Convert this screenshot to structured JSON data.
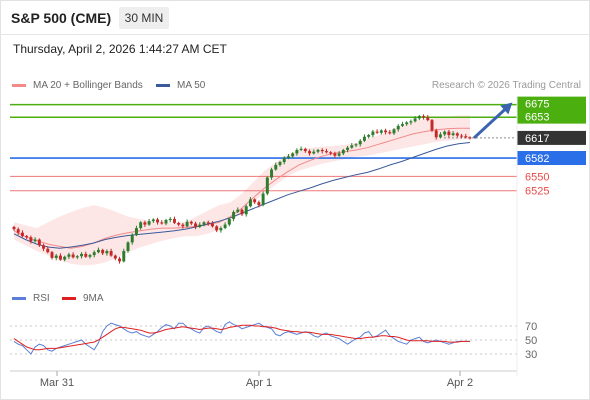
{
  "header": {
    "symbol": "S&P 500 (CME)",
    "interval": "30 MIN"
  },
  "timestamp": "Thursday, April 2, 2026 1:44:27 AM CET",
  "legend": {
    "ma20": {
      "label": "MA 20 + Bollinger Bands",
      "color": "#f28a8a"
    },
    "ma50": {
      "label": "MA 50",
      "color": "#3b5a9a"
    },
    "credit": "Research © 2026 Trading Central"
  },
  "rsi_legend": {
    "rsi": {
      "label": "RSI",
      "color": "#5a7fd6"
    },
    "ma9": {
      "label": "9MA",
      "color": "#e02020"
    }
  },
  "chart_data": [
    {
      "type": "candlestick",
      "ylim": [
        6380,
        6690
      ],
      "x_tick_labels": [
        "Mar 31",
        "Apr 1",
        "Apr 2"
      ],
      "levels": [
        {
          "label": "6675",
          "value": 6675,
          "color": "#4caf10",
          "kind": "resistance"
        },
        {
          "label": "6653",
          "value": 6653,
          "color": "#4caf10",
          "kind": "resistance"
        },
        {
          "label": "6617",
          "value": 6617,
          "color": "#333333",
          "kind": "last"
        },
        {
          "label": "6582",
          "value": 6582,
          "color": "#2a6ee8",
          "kind": "pivot"
        },
        {
          "label": "6550",
          "value": 6550,
          "color": "#ea4a4a",
          "kind": "support"
        },
        {
          "label": "6525",
          "value": 6525,
          "color": "#ea4a4a",
          "kind": "support"
        }
      ],
      "colors": {
        "up": "#2e7d2e",
        "down": "#c62828",
        "band": "#fde3e3"
      },
      "close": [
        6458,
        6452,
        6446,
        6444,
        6437,
        6440,
        6430,
        6424,
        6418,
        6408,
        6412,
        6405,
        6410,
        6414,
        6409,
        6411,
        6415,
        6410,
        6413,
        6418,
        6422,
        6416,
        6420,
        6412,
        6407,
        6402,
        6420,
        6435,
        6448,
        6460,
        6470,
        6466,
        6472,
        6475,
        6470,
        6468,
        6474,
        6476,
        6469,
        6466,
        6463,
        6471,
        6468,
        6462,
        6466,
        6470,
        6468,
        6463,
        6456,
        6460,
        6466,
        6476,
        6488,
        6492,
        6484,
        6498,
        6510,
        6505,
        6500,
        6520,
        6548,
        6562,
        6570,
        6575,
        6582,
        6585,
        6590,
        6596,
        6598,
        6594,
        6590,
        6593,
        6596,
        6594,
        6592,
        6590,
        6586,
        6590,
        6596,
        6600,
        6604,
        6606,
        6612,
        6619,
        6622,
        6628,
        6626,
        6630,
        6627,
        6625,
        6632,
        6638,
        6641,
        6644,
        6646,
        6651,
        6655,
        6653,
        6648,
        6630,
        6618,
        6623,
        6628,
        6622,
        6625,
        6621,
        6620,
        6618,
        6617
      ],
      "bollinger": {
        "upper": [
          6470,
          6465,
          6460,
          6470,
          6480,
          6488,
          6495,
          6500,
          6495,
          6488,
          6480,
          6476,
          6472,
          6470,
          6468,
          6470,
          6480,
          6490,
          6500,
          6505,
          6520,
          6540,
          6560,
          6575,
          6588,
          6596,
          6600,
          6602,
          6603,
          6605,
          6608,
          6615,
          6622,
          6630,
          6638,
          6646,
          6650,
          6652,
          6654,
          6656,
          6656
        ],
        "lower": [
          6440,
          6430,
          6420,
          6412,
          6404,
          6398,
          6395,
          6396,
          6400,
          6408,
          6418,
          6426,
          6432,
          6438,
          6442,
          6446,
          6446,
          6450,
          6458,
          6470,
          6488,
          6505,
          6522,
          6536,
          6550,
          6560,
          6566,
          6572,
          6576,
          6580,
          6584,
          6586,
          6590,
          6594,
          6598,
          6602,
          6606,
          6610,
          6612,
          6614,
          6615
        ]
      },
      "ma20": [
        6455,
        6445,
        6438,
        6432,
        6428,
        6425,
        6428,
        6434,
        6442,
        6448,
        6452,
        6455,
        6458,
        6460,
        6460,
        6461,
        6463,
        6466,
        6470,
        6480,
        6495,
        6513,
        6530,
        6545,
        6558,
        6570,
        6578,
        6585,
        6590,
        6593,
        6596,
        6600,
        6606,
        6612,
        6618,
        6624,
        6628,
        6631,
        6633,
        6634,
        6634
      ],
      "ma50": [
        6450,
        6440,
        6432,
        6427,
        6425,
        6427,
        6430,
        6434,
        6440,
        6444,
        6447,
        6449,
        6451,
        6453,
        6455,
        6458,
        6462,
        6467,
        6472,
        6478,
        6486,
        6494,
        6502,
        6510,
        6518,
        6524,
        6530,
        6537,
        6543,
        6548,
        6553,
        6557,
        6563,
        6570,
        6576,
        6583,
        6590,
        6597,
        6603,
        6607,
        6609
      ],
      "projection": {
        "from": 6617,
        "to": 6675
      }
    },
    {
      "type": "line",
      "ylim": [
        10,
        90
      ],
      "y_tick_labels": [
        "70",
        "50",
        "30"
      ],
      "y_ticks": [
        70,
        50,
        30
      ],
      "series": [
        {
          "name": "RSI",
          "values": [
            48,
            44,
            42,
            36,
            30,
            40,
            44,
            42,
            36,
            34,
            38,
            40,
            42,
            44,
            46,
            48,
            50,
            44,
            40,
            36,
            46,
            62,
            70,
            74,
            72,
            70,
            66,
            62,
            60,
            62,
            58,
            56,
            54,
            58,
            62,
            68,
            72,
            70,
            66,
            74,
            74,
            68,
            66,
            62,
            60,
            68,
            70,
            66,
            62,
            60,
            72,
            76,
            72,
            70,
            66,
            68,
            70,
            72,
            74,
            70,
            68,
            66,
            58,
            56,
            60,
            62,
            60,
            58,
            60,
            62,
            60,
            56,
            54,
            58,
            60,
            56,
            54,
            52,
            48,
            44,
            48,
            52,
            54,
            60,
            62,
            54,
            56,
            60,
            64,
            56,
            52,
            48,
            46,
            44,
            50,
            52,
            54,
            48,
            46,
            48,
            50,
            48,
            46,
            44,
            46,
            48,
            48,
            48,
            48
          ]
        },
        {
          "name": "9MA",
          "values": [
            52,
            48,
            44,
            40,
            38,
            36,
            36,
            37,
            38,
            38,
            38,
            39,
            40,
            41,
            42,
            43,
            44,
            45,
            46,
            47,
            50,
            54,
            58,
            62,
            66,
            68,
            68,
            67,
            66,
            65,
            64,
            62,
            60,
            60,
            61,
            63,
            65,
            66,
            67,
            68,
            69,
            68,
            67,
            66,
            65,
            66,
            67,
            67,
            66,
            65,
            66,
            68,
            69,
            70,
            71,
            71,
            71,
            70,
            70,
            69,
            69,
            68,
            67,
            65,
            64,
            63,
            62,
            62,
            61,
            61,
            61,
            60,
            59,
            58,
            58,
            58,
            57,
            56,
            55,
            54,
            53,
            52,
            52,
            53,
            54,
            54,
            55,
            56,
            56,
            55,
            55,
            54,
            52,
            50,
            49,
            49,
            49,
            49,
            49,
            48,
            48,
            48,
            48,
            47,
            47,
            47,
            48,
            48,
            48
          ]
        }
      ]
    }
  ]
}
